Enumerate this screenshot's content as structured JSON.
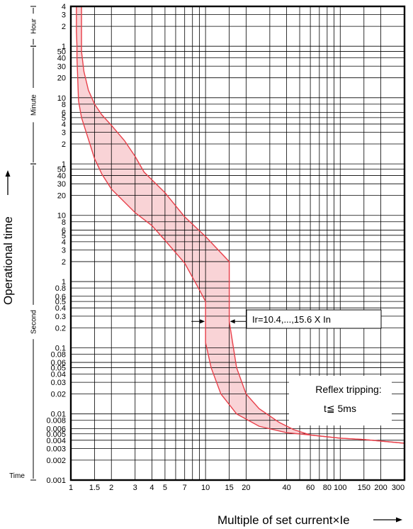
{
  "chart_data": {
    "type": "line",
    "title": "",
    "xlabel": "Multiple of set current×Ie",
    "ylabel": "Operational time",
    "x_scale": "log",
    "y_scale": "log",
    "xlim": [
      1,
      300
    ],
    "ylim_seconds": [
      0.001,
      14400
    ],
    "grid": true,
    "x_ticks": [
      {
        "v": 1,
        "label": "1"
      },
      {
        "v": 1.5,
        "label": "1.5"
      },
      {
        "v": 2,
        "label": "2"
      },
      {
        "v": 3,
        "label": "3"
      },
      {
        "v": 4,
        "label": "4"
      },
      {
        "v": 5,
        "label": "5"
      },
      {
        "v": 7,
        "label": "7"
      },
      {
        "v": 10,
        "label": "10"
      },
      {
        "v": 15,
        "label": "15"
      },
      {
        "v": 20,
        "label": "20"
      },
      {
        "v": 40,
        "label": "40"
      },
      {
        "v": 60,
        "label": "60"
      },
      {
        "v": 80,
        "label": "80"
      },
      {
        "v": 100,
        "label": "100"
      },
      {
        "v": 150,
        "label": "150"
      },
      {
        "v": 200,
        "label": "200"
      },
      {
        "v": 300,
        "label": "300"
      }
    ],
    "x_grid": [
      1,
      1.5,
      2,
      3,
      4,
      5,
      6,
      7,
      8,
      9,
      10,
      15,
      20,
      30,
      40,
      50,
      60,
      70,
      80,
      90,
      100,
      150,
      200,
      300
    ],
    "y_ticks": [
      {
        "s": 14400,
        "label": "4"
      },
      {
        "s": 10800,
        "label": "3"
      },
      {
        "s": 7200,
        "label": "2"
      },
      {
        "s": 3600,
        "label": "1"
      },
      {
        "s": 3000,
        "label": "50"
      },
      {
        "s": 2400,
        "label": "40"
      },
      {
        "s": 1800,
        "label": "30"
      },
      {
        "s": 1200,
        "label": "20"
      },
      {
        "s": 600,
        "label": "10"
      },
      {
        "s": 480,
        "label": "8"
      },
      {
        "s": 360,
        "label": "6"
      },
      {
        "s": 300,
        "label": "5"
      },
      {
        "s": 240,
        "label": "4"
      },
      {
        "s": 180,
        "label": "3"
      },
      {
        "s": 120,
        "label": "2"
      },
      {
        "s": 60,
        "label": "1"
      },
      {
        "s": 50,
        "label": "50"
      },
      {
        "s": 40,
        "label": "40"
      },
      {
        "s": 30,
        "label": "30"
      },
      {
        "s": 20,
        "label": "20"
      },
      {
        "s": 10,
        "label": "10"
      },
      {
        "s": 8,
        "label": "8"
      },
      {
        "s": 6,
        "label": "6"
      },
      {
        "s": 5,
        "label": "5"
      },
      {
        "s": 4,
        "label": "4"
      },
      {
        "s": 3,
        "label": "3"
      },
      {
        "s": 2,
        "label": "2"
      },
      {
        "s": 1,
        "label": "1"
      },
      {
        "s": 0.8,
        "label": "0.8"
      },
      {
        "s": 0.6,
        "label": "0.6"
      },
      {
        "s": 0.5,
        "label": "0.5"
      },
      {
        "s": 0.4,
        "label": "0.4"
      },
      {
        "s": 0.3,
        "label": "0.3"
      },
      {
        "s": 0.2,
        "label": "0.2"
      },
      {
        "s": 0.1,
        "label": "0.1"
      },
      {
        "s": 0.08,
        "label": "0.08"
      },
      {
        "s": 0.06,
        "label": "0.06"
      },
      {
        "s": 0.05,
        "label": "0.05"
      },
      {
        "s": 0.04,
        "label": "0.04"
      },
      {
        "s": 0.03,
        "label": "0.03"
      },
      {
        "s": 0.02,
        "label": "0.02"
      },
      {
        "s": 0.01,
        "label": "0.01"
      },
      {
        "s": 0.008,
        "label": "0.008"
      },
      {
        "s": 0.006,
        "label": "0.006"
      },
      {
        "s": 0.005,
        "label": "0.005"
      },
      {
        "s": 0.004,
        "label": "0.004"
      },
      {
        "s": 0.003,
        "label": "0.003"
      },
      {
        "s": 0.002,
        "label": "0.002"
      },
      {
        "s": 0.001,
        "label": "0.001"
      }
    ],
    "y_units": [
      {
        "label": "Hour",
        "from_s": 3600,
        "to_s": 14400
      },
      {
        "label": "Minute",
        "from_s": 60,
        "to_s": 3600
      },
      {
        "label": "Second",
        "from_s": 0.001,
        "to_s": 60
      }
    ],
    "y_unit_bottom_label": "Time",
    "series": [
      {
        "role": "upper",
        "points": [
          [
            1.2,
            14400
          ],
          [
            1.2,
            3000
          ],
          [
            1.25,
            1500
          ],
          [
            1.35,
            780
          ],
          [
            1.5,
            480
          ],
          [
            1.7,
            330
          ],
          [
            2,
            230
          ],
          [
            2.5,
            135
          ],
          [
            3,
            78
          ],
          [
            3.5,
            45
          ],
          [
            5,
            22
          ],
          [
            7,
            9.5
          ],
          [
            10,
            4.8
          ],
          [
            15,
            2
          ],
          [
            15,
            0.25
          ],
          [
            17,
            0.05
          ],
          [
            20,
            0.02
          ],
          [
            25,
            0.012
          ],
          [
            35,
            0.0075
          ],
          [
            45,
            0.0058
          ],
          [
            60,
            0.0048
          ],
          [
            100,
            0.0043
          ],
          [
            150,
            0.0041
          ],
          [
            300,
            0.0036
          ]
        ]
      },
      {
        "role": "lower",
        "points": [
          [
            1.1,
            14400
          ],
          [
            1.1,
            6000
          ],
          [
            1.11,
            3600
          ],
          [
            1.11,
            2400
          ],
          [
            1.12,
            1500
          ],
          [
            1.14,
            540
          ],
          [
            1.2,
            300
          ],
          [
            1.3,
            180
          ],
          [
            1.5,
            72
          ],
          [
            1.7,
            42
          ],
          [
            2,
            25
          ],
          [
            3,
            11
          ],
          [
            4,
            7
          ],
          [
            5,
            4.2
          ],
          [
            7,
            1.9
          ],
          [
            9,
            0.75
          ],
          [
            10,
            0.5
          ],
          [
            10,
            0.12
          ],
          [
            11,
            0.05
          ],
          [
            13,
            0.02
          ],
          [
            17,
            0.01
          ],
          [
            25,
            0.0065
          ],
          [
            40,
            0.0052
          ],
          [
            60,
            0.0048
          ],
          [
            100,
            0.0043
          ],
          [
            150,
            0.0041
          ],
          [
            300,
            0.0036
          ]
        ]
      }
    ],
    "annotations": [
      {
        "text": "Ir=10.4,...,15.6 X In",
        "x_from": 10,
        "x_to": 15,
        "at_s": 0.25
      },
      {
        "text": "Reflex tripping:",
        "line": 1
      },
      {
        "text": "t≦ 5ms",
        "line": 2
      }
    ],
    "colors": {
      "curve": "#e8404a",
      "fill": "#f9d3d6",
      "grid": "#000000"
    }
  }
}
